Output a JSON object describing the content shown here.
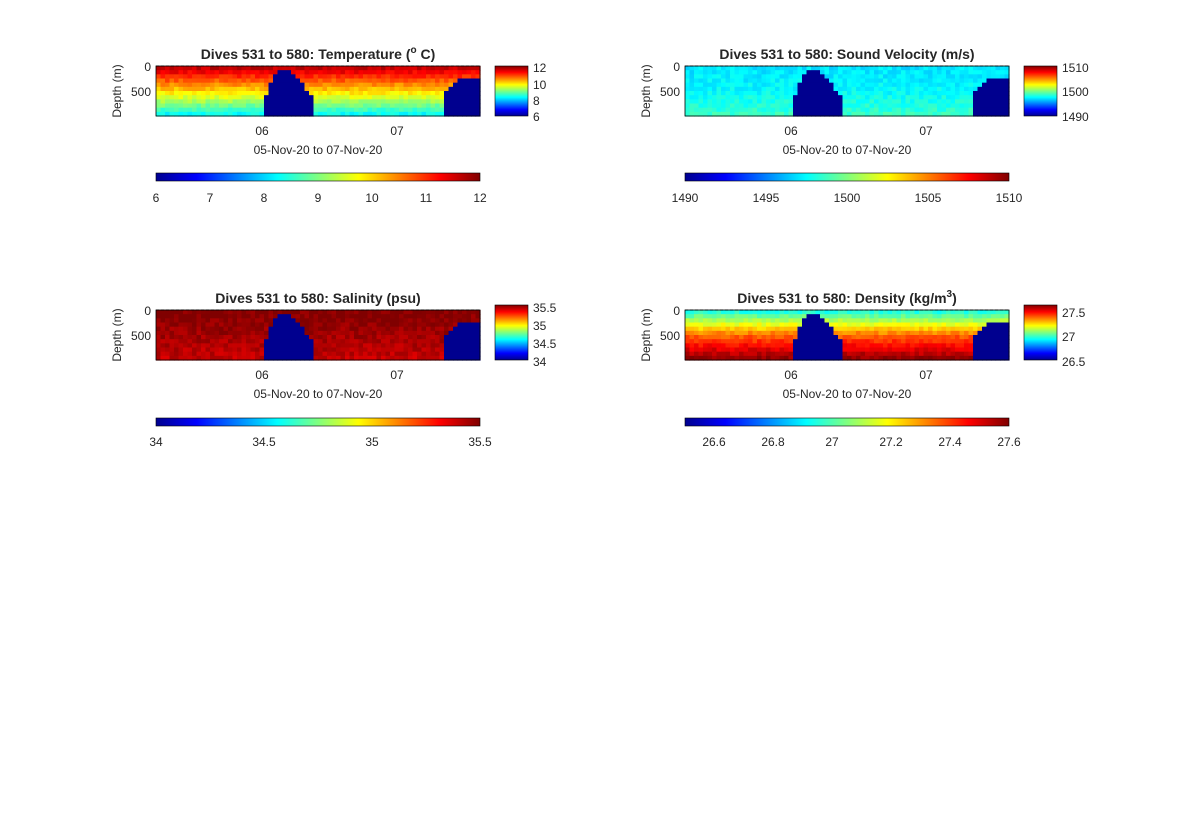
{
  "figure": {
    "background": "#ffffff"
  },
  "chart_data": [
    {
      "type": "heatmap",
      "title": "Dives 531 to 580: Temperature (",
      "title_sup": "o",
      "title_tail": " C)",
      "xlabel": "05-Nov-20 to 07-Nov-20",
      "ylabel": "Depth (m)",
      "x_ticks": [
        "06",
        "07"
      ],
      "y_ticks": [
        "0",
        "500"
      ],
      "ylim": [
        0,
        900
      ],
      "field": {
        "surface": 11.6,
        "deep": 8.3,
        "mid": 10.0
      },
      "colorbar": {
        "ticks": [
          "12",
          "10",
          "8",
          "6"
        ],
        "range": [
          6,
          12
        ]
      },
      "horizontal_colorbar": {
        "ticks": [
          "6",
          "7",
          "8",
          "9",
          "10",
          "11",
          "12"
        ],
        "range": [
          6,
          12
        ]
      },
      "colormap": "jet"
    },
    {
      "type": "heatmap",
      "title": "Dives 531 to 580: Sound Velocity (m/s)",
      "xlabel": "05-Nov-20 to 07-Nov-20",
      "ylabel": "Depth (m)",
      "x_ticks": [
        "06",
        "07"
      ],
      "y_ticks": [
        "0",
        "500"
      ],
      "ylim": [
        0,
        900
      ],
      "field": {
        "surface": 1497,
        "deep": 1498.5,
        "mid": 1497.5
      },
      "colorbar": {
        "ticks": [
          "1510",
          "1500",
          "1490"
        ],
        "range": [
          1490,
          1510
        ]
      },
      "horizontal_colorbar": {
        "ticks": [
          "1490",
          "1495",
          "1500",
          "1505",
          "1510"
        ],
        "range": [
          1490,
          1510
        ]
      },
      "colormap": "jet"
    },
    {
      "type": "heatmap",
      "title": "Dives 531 to 580: Salinity (psu)",
      "xlabel": "05-Nov-20 to 07-Nov-20",
      "ylabel": "Depth (m)",
      "x_ticks": [
        "06",
        "07"
      ],
      "y_ticks": [
        "0",
        "500"
      ],
      "ylim": [
        0,
        900
      ],
      "field": {
        "surface": 35.5,
        "deep": 35.4,
        "mid": 35.45
      },
      "colorbar": {
        "ticks": [
          "35.5",
          "35",
          "34.5",
          "34"
        ],
        "range": [
          34,
          35.5
        ]
      },
      "horizontal_colorbar": {
        "ticks": [
          "34",
          "34.5",
          "35",
          "35.5"
        ],
        "range": [
          34,
          35.5
        ]
      },
      "colormap": "jet"
    },
    {
      "type": "heatmap",
      "title": "Dives 531 to 580: Density (kg/m",
      "title_sup": "3",
      "title_tail": ")",
      "xlabel": "05-Nov-20 to 07-Nov-20",
      "ylabel": "Depth (m)",
      "x_ticks": [
        "06",
        "07"
      ],
      "y_ticks": [
        "0",
        "500"
      ],
      "ylim": [
        0,
        900
      ],
      "field": {
        "surface": 26.95,
        "deep": 27.58,
        "mid": 27.35
      },
      "colorbar": {
        "ticks": [
          "27.5",
          "27",
          "26.5"
        ],
        "range": [
          26.5,
          27.6
        ]
      },
      "horizontal_colorbar": {
        "ticks": [
          "26.6",
          "26.8",
          "27",
          "27.2",
          "27.4",
          "27.6"
        ],
        "range": [
          26.5,
          27.6
        ]
      },
      "colormap": "jet"
    }
  ]
}
